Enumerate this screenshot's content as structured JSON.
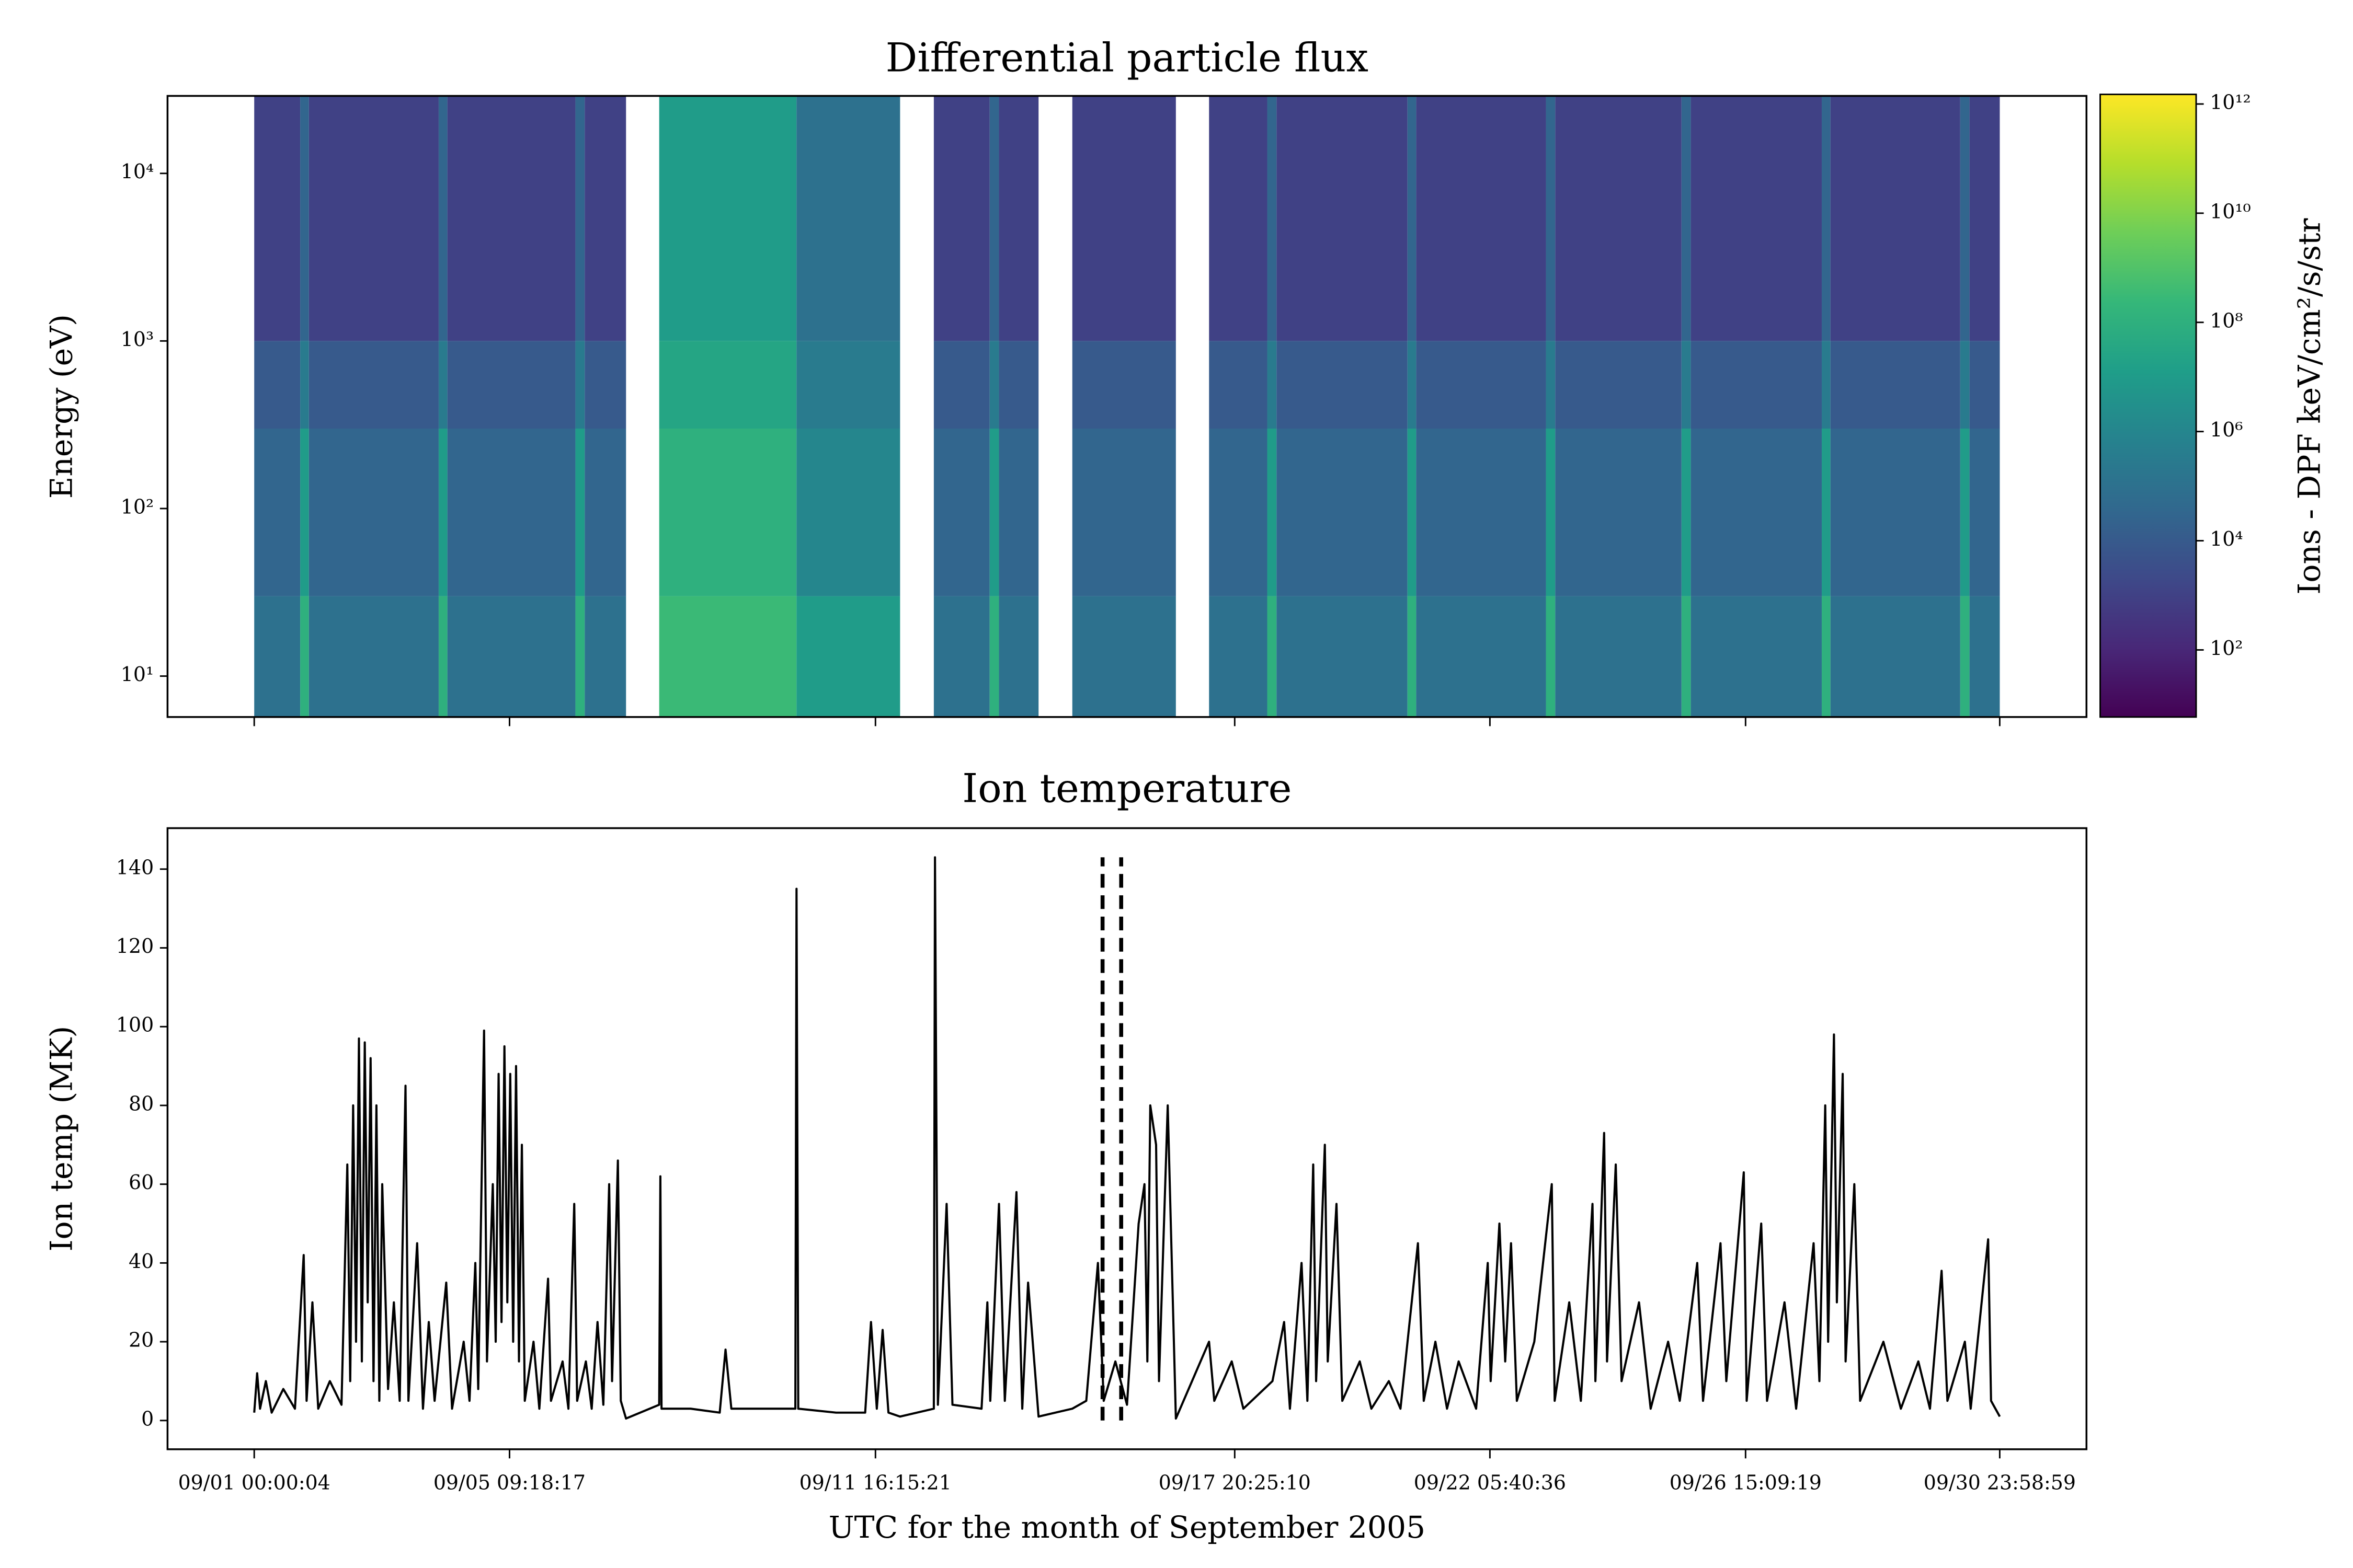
{
  "chart_data": [
    {
      "type": "heatmap",
      "title": "Differential particle flux",
      "ylabel": "Energy (eV)",
      "yscale": "log",
      "ylim": [
        5.7,
        29000
      ],
      "yticks": [
        {
          "value": 10,
          "label": "10¹"
        },
        {
          "value": 100,
          "label": "10²"
        },
        {
          "value": 1000,
          "label": "10³"
        },
        {
          "value": 10000,
          "label": "10⁴"
        }
      ],
      "xlim": [
        -0.49,
        32.49
      ],
      "xticks": [
        1.0,
        5.3877,
        11.677,
        17.851,
        22.237,
        26.631,
        30.999
      ],
      "x": [
        1.0,
        1.79,
        1.94,
        4.17,
        4.32,
        6.52,
        6.68,
        7.39,
        7.96,
        10.32,
        12.1,
        12.68,
        13.64,
        13.8,
        14.48,
        15.06,
        16.84,
        17.41,
        18.41,
        18.57,
        20.82,
        20.97,
        23.2,
        23.36,
        25.53,
        25.69,
        27.94,
        28.09,
        30.32,
        30.48,
        31.0
      ],
      "energy_bins": [
        5.7,
        30,
        300,
        1000,
        29000
      ],
      "z": [
        [
          100000.0,
          30000.0,
          10000.0,
          1000.0
        ],
        [
          100000000.0,
          10000000.0,
          300000.0,
          30000.0
        ],
        [
          100000.0,
          30000.0,
          10000.0,
          1000.0
        ],
        [
          100000000.0,
          10000000.0,
          300000.0,
          30000.0
        ],
        [
          100000.0,
          30000.0,
          10000.0,
          1000.0
        ],
        [
          100000000.0,
          10000000.0,
          300000.0,
          30000.0
        ],
        [
          100000.0,
          30000.0,
          10000.0,
          1000.0
        ],
        [
          null,
          null,
          null,
          null
        ],
        [
          300000000.0,
          100000000.0,
          30000000.0,
          10000000.0
        ],
        [
          10000000.0,
          1000000.0,
          300000.0,
          100000.0
        ],
        [
          null,
          null,
          null,
          null
        ],
        [
          100000.0,
          30000.0,
          10000.0,
          1000.0
        ],
        [
          100000000.0,
          10000000.0,
          300000.0,
          30000.0
        ],
        [
          100000.0,
          30000.0,
          10000.0,
          1000.0
        ],
        [
          null,
          null,
          null,
          null
        ],
        [
          100000.0,
          30000.0,
          10000.0,
          1000.0
        ],
        [
          null,
          null,
          null,
          null
        ],
        [
          100000.0,
          30000.0,
          10000.0,
          1000.0
        ],
        [
          100000000.0,
          10000000.0,
          300000.0,
          30000.0
        ],
        [
          100000.0,
          30000.0,
          10000.0,
          1000.0
        ],
        [
          100000000.0,
          10000000.0,
          300000.0,
          30000.0
        ],
        [
          100000.0,
          30000.0,
          10000.0,
          1000.0
        ],
        [
          100000000.0,
          10000000.0,
          300000.0,
          30000.0
        ],
        [
          100000.0,
          30000.0,
          10000.0,
          1000.0
        ],
        [
          100000000.0,
          10000000.0,
          300000.0,
          30000.0
        ],
        [
          100000.0,
          30000.0,
          10000.0,
          1000.0
        ],
        [
          100000000.0,
          10000000.0,
          300000.0,
          30000.0
        ],
        [
          100000.0,
          30000.0,
          10000.0,
          1000.0
        ],
        [
          100000000.0,
          10000000.0,
          300000.0,
          30000.0
        ],
        [
          100000.0,
          30000.0,
          10000.0,
          1000.0
        ]
      ],
      "colorbar_label": "Ions - DPF keV/cm²/s/str",
      "clim": [
        5.9,
        1500000000000.0
      ],
      "cticks": [
        {
          "value": 100.0,
          "label": "10²"
        },
        {
          "value": 10000.0,
          "label": "10⁴"
        },
        {
          "value": 1000000.0,
          "label": "10⁶"
        },
        {
          "value": 100000000.0,
          "label": "10⁸"
        },
        {
          "value": 10000000000.0,
          "label": "10¹⁰"
        },
        {
          "value": 1000000000000.0,
          "label": "10¹²"
        }
      ],
      "colormap": [
        "#440154",
        "#482878",
        "#3e4989",
        "#31688e",
        "#26828e",
        "#1f9e89",
        "#35b779",
        "#6ece58",
        "#b5de2b",
        "#fde725"
      ]
    },
    {
      "type": "line",
      "title": "Ion temperature",
      "ylabel": "Ion temp (MK)",
      "xlabel": "UTC for the month of September 2005",
      "ylim": [
        -7.3,
        150.4
      ],
      "yticks": [
        0,
        20,
        40,
        60,
        80,
        100,
        120,
        140
      ],
      "xlim": [
        -0.49,
        32.49
      ],
      "xticks": [
        {
          "value": 1.0,
          "label": "09/01 00:00:04"
        },
        {
          "value": 5.3877,
          "label": "09/05 09:18:17"
        },
        {
          "value": 11.677,
          "label": "09/11 16:15:21"
        },
        {
          "value": 17.851,
          "label": "09/17 20:25:10"
        },
        {
          "value": 22.237,
          "label": "09/22 05:40:36"
        },
        {
          "value": 26.631,
          "label": "09/26 15:09:19"
        },
        {
          "value": 30.999,
          "label": "09/30 23:58:59"
        }
      ],
      "vlines": [
        15.58,
        15.9
      ],
      "vline_top": 143,
      "vline_style": "dashed",
      "color": "#000000",
      "x": [
        1.0,
        1.05,
        1.1,
        1.2,
        1.3,
        1.5,
        1.7,
        1.85,
        1.9,
        2.0,
        2.1,
        2.3,
        2.5,
        2.6,
        2.65,
        2.7,
        2.75,
        2.8,
        2.85,
        2.9,
        2.95,
        3.0,
        3.05,
        3.1,
        3.15,
        3.2,
        3.3,
        3.4,
        3.5,
        3.6,
        3.65,
        3.8,
        3.9,
        4.0,
        4.1,
        4.3,
        4.4,
        4.6,
        4.7,
        4.8,
        4.85,
        4.95,
        5.0,
        5.1,
        5.15,
        5.2,
        5.25,
        5.3,
        5.35,
        5.4,
        5.45,
        5.5,
        5.55,
        5.6,
        5.65,
        5.8,
        5.9,
        6.05,
        6.1,
        6.3,
        6.4,
        6.5,
        6.55,
        6.7,
        6.8,
        6.9,
        7.0,
        7.1,
        7.15,
        7.25,
        7.3,
        7.39,
        7.96,
        7.98,
        8.0,
        8.5,
        9.0,
        9.1,
        9.2,
        10.0,
        10.3,
        10.32,
        10.35,
        11.0,
        11.5,
        11.6,
        11.7,
        11.8,
        11.9,
        12.1,
        12.68,
        12.7,
        12.75,
        12.9,
        13.0,
        13.5,
        13.6,
        13.65,
        13.8,
        13.9,
        14.1,
        14.2,
        14.3,
        14.48,
        15.06,
        15.3,
        15.5,
        15.6,
        15.8,
        16.0,
        16.2,
        16.3,
        16.35,
        16.4,
        16.5,
        16.55,
        16.7,
        16.84,
        17.41,
        17.5,
        17.8,
        18.0,
        18.5,
        18.7,
        18.8,
        19.0,
        19.1,
        19.2,
        19.25,
        19.4,
        19.45,
        19.6,
        19.7,
        20.0,
        20.2,
        20.5,
        20.7,
        21.0,
        21.1,
        21.3,
        21.5,
        21.7,
        22.0,
        22.2,
        22.25,
        22.4,
        22.5,
        22.6,
        22.7,
        23.0,
        23.3,
        23.35,
        23.6,
        23.8,
        24.0,
        24.05,
        24.2,
        24.25,
        24.4,
        24.5,
        24.8,
        25.0,
        25.3,
        25.5,
        25.8,
        25.9,
        26.2,
        26.3,
        26.6,
        26.65,
        26.9,
        27.0,
        27.3,
        27.5,
        27.8,
        27.9,
        28.0,
        28.05,
        28.15,
        28.2,
        28.3,
        28.35,
        28.5,
        28.6,
        29.0,
        29.3,
        29.6,
        29.8,
        30.0,
        30.1,
        30.4,
        30.5,
        30.8,
        30.85,
        31.0
      ],
      "values": [
        2,
        12,
        3,
        10,
        2,
        8,
        3,
        42,
        5,
        30,
        3,
        10,
        4,
        65,
        10,
        80,
        20,
        97,
        15,
        96,
        30,
        92,
        10,
        80,
        5,
        60,
        8,
        30,
        5,
        85,
        5,
        45,
        3,
        25,
        5,
        35,
        3,
        20,
        5,
        40,
        8,
        99,
        15,
        60,
        20,
        88,
        25,
        95,
        30,
        88,
        20,
        90,
        15,
        70,
        5,
        20,
        3,
        36,
        5,
        15,
        3,
        55,
        5,
        15,
        3,
        25,
        4,
        60,
        10,
        66,
        5,
        0.5,
        4,
        62,
        3,
        3,
        2,
        18,
        3,
        3,
        3,
        135,
        3,
        2,
        2,
        25,
        3,
        23,
        2,
        1,
        3,
        143,
        4,
        55,
        4,
        3,
        30,
        5,
        55,
        5,
        58,
        3,
        35,
        1,
        3,
        5,
        40,
        5,
        15,
        4,
        50,
        60,
        15,
        80,
        70,
        10,
        80,
        0.5,
        20,
        5,
        15,
        3,
        10,
        25,
        3,
        40,
        5,
        65,
        10,
        70,
        15,
        55,
        5,
        15,
        3,
        10,
        3,
        45,
        5,
        20,
        3,
        15,
        3,
        40,
        10,
        50,
        15,
        45,
        5,
        20,
        60,
        5,
        30,
        5,
        55,
        10,
        73,
        15,
        65,
        10,
        30,
        3,
        20,
        5,
        40,
        5,
        45,
        10,
        63,
        5,
        50,
        5,
        30,
        3,
        45,
        10,
        80,
        20,
        98,
        30,
        88,
        15,
        60,
        5,
        20,
        3,
        15,
        3,
        38,
        5,
        20,
        3,
        46,
        5,
        1
      ]
    }
  ]
}
